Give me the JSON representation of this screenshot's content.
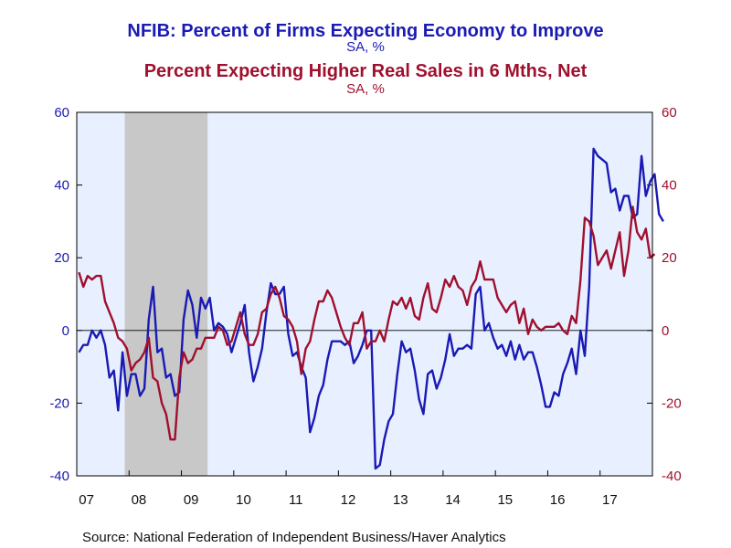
{
  "chart_data": {
    "type": "line",
    "title": "NFIB: Percent of Firms Expecting Economy to Improve",
    "title_unit": "SA, %",
    "subtitle": "Percent Expecting Higher Real Sales in 6 Mths, Net",
    "subtitle_unit": "SA, %",
    "source": "Source:  National Federation of Independent Business/Haver Analytics",
    "x_tick_labels": [
      "07",
      "08",
      "09",
      "10",
      "11",
      "12",
      "13",
      "14",
      "15",
      "16",
      "17"
    ],
    "y_left_ticks": [
      "60",
      "40",
      "20",
      "0",
      "-20",
      "-40"
    ],
    "y_right_ticks": [
      "60",
      "40",
      "20",
      "0",
      "-20",
      "-40"
    ],
    "ylim": [
      -40,
      60
    ],
    "x_range": [
      "2007-01",
      "2017-12"
    ],
    "recession_shading": {
      "start": "2007-12",
      "end": "2009-06",
      "color": "#c8c8c8"
    },
    "zero_line": true,
    "colors": {
      "background": "#e8f0ff",
      "economy_series": "#1a1ab4",
      "sales_series": "#a0102e"
    },
    "series": [
      {
        "axis": "left",
        "start": "2007-01",
        "values": [
          -6,
          -4,
          -4,
          0,
          -2,
          0,
          -4,
          -13,
          -11,
          -22,
          -6,
          -18,
          -12,
          -12,
          -18,
          -16,
          3,
          12,
          -6,
          -5,
          -13,
          -12,
          -18,
          -17,
          3,
          11,
          7,
          -2,
          9,
          6,
          9,
          0,
          2,
          1,
          -1,
          -6,
          -2,
          2,
          7,
          -6,
          -14,
          -10,
          -5,
          5,
          13,
          10,
          10,
          12,
          -1,
          -7,
          -6,
          -10,
          -13,
          -28,
          -24,
          -18,
          -15,
          -8,
          -3,
          -3,
          -3,
          -4,
          -3,
          -9,
          -7,
          -4,
          0,
          0,
          -38,
          -37,
          -30,
          -25,
          -23,
          -12,
          -3,
          -6,
          -5,
          -11,
          -19,
          -23,
          -12,
          -11,
          -16,
          -13,
          -8,
          -1,
          -7,
          -5,
          -5,
          -4,
          -5,
          10,
          12,
          0,
          2,
          -2,
          -5,
          -4,
          -7,
          -3,
          -8,
          -4,
          -8,
          -6,
          -6,
          -10,
          -15,
          -21,
          -21,
          -17,
          -18,
          -12,
          -9,
          -5,
          -12,
          0,
          -7,
          12,
          50,
          48,
          47,
          46,
          38,
          39,
          33,
          37,
          37,
          31,
          32,
          48,
          37,
          41,
          43,
          32,
          30
        ]
      },
      {
        "axis": "right",
        "start": "2007-01",
        "values": [
          16,
          12,
          15,
          14,
          15,
          15,
          8,
          5,
          2,
          -2,
          -3,
          -5,
          -11,
          -9,
          -8,
          -6,
          -2,
          -13,
          -14,
          -20,
          -23,
          -30,
          -30,
          -13,
          -6,
          -9,
          -8,
          -5,
          -5,
          -2,
          -2,
          -2,
          1,
          0,
          -4,
          -3,
          1,
          5,
          -1,
          -4,
          -4,
          -1,
          5,
          6,
          10,
          12,
          9,
          4,
          3,
          1,
          -3,
          -12,
          -5,
          -3,
          3,
          8,
          8,
          11,
          9,
          5,
          1,
          -2,
          -4,
          2,
          2,
          5,
          -5,
          -3,
          -3,
          0,
          -3,
          3,
          8,
          7,
          9,
          6,
          9,
          4,
          3,
          9,
          13,
          6,
          5,
          9,
          14,
          12,
          15,
          12,
          11,
          7,
          12,
          14,
          19,
          14,
          14,
          14,
          9,
          7,
          5,
          7,
          8,
          2,
          6,
          -1,
          3,
          1,
          0,
          1,
          1,
          1,
          2,
          0,
          -1,
          4,
          2,
          14,
          31,
          30,
          26,
          18,
          20,
          22,
          17,
          22,
          27,
          15,
          22,
          34,
          27,
          25,
          28,
          20,
          21
        ]
      }
    ]
  }
}
